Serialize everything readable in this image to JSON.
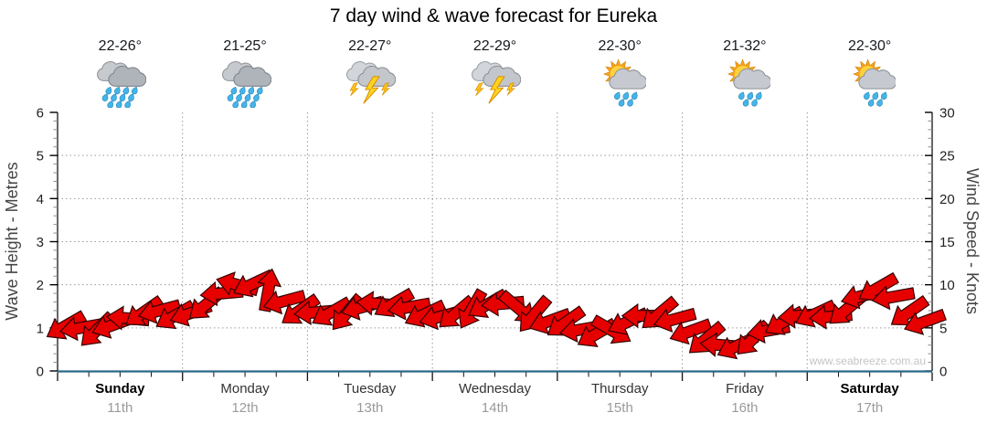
{
  "title": "7 day wind & wave forecast for Eureka",
  "watermark": "www.seabreeze.com.au",
  "axes": {
    "left": {
      "title": "Wave Height - Metres",
      "unit": "metres",
      "ticks": [
        0,
        1,
        2,
        3,
        4,
        5,
        6
      ],
      "max": 6
    },
    "right": {
      "title": "Wind Speed - Knots",
      "unit": "knots",
      "ticks": [
        0,
        5,
        10,
        15,
        20,
        25,
        30
      ],
      "max": 30
    }
  },
  "days": [
    {
      "name": "Sunday",
      "date": "11th",
      "temp": "22-26°",
      "icon": "heavy-rain",
      "weekend": true
    },
    {
      "name": "Monday",
      "date": "12th",
      "temp": "21-25°",
      "icon": "heavy-rain",
      "weekend": false
    },
    {
      "name": "Tuesday",
      "date": "13th",
      "temp": "22-27°",
      "icon": "thunderstorm",
      "weekend": false
    },
    {
      "name": "Wednesday",
      "date": "14th",
      "temp": "22-29°",
      "icon": "thunderstorm",
      "weekend": false
    },
    {
      "name": "Thursday",
      "date": "15th",
      "temp": "22-30°",
      "icon": "sun-shower",
      "weekend": false
    },
    {
      "name": "Friday",
      "date": "16th",
      "temp": "21-32°",
      "icon": "sun-shower",
      "weekend": false
    },
    {
      "name": "Saturday",
      "date": "17th",
      "temp": "22-30°",
      "icon": "sun-shower",
      "weekend": true
    }
  ],
  "chart_data": {
    "type": "wind-barb-series",
    "title": "7 day wind & wave forecast for Eureka",
    "points_per_day": 8,
    "interval_hours": 3,
    "x_categories": [
      "Sunday 11th",
      "Monday 12th",
      "Tuesday 13th",
      "Wednesday 14th",
      "Thursday 15th",
      "Friday 16th",
      "Saturday 17th"
    ],
    "ylim_left_metres": [
      0,
      6
    ],
    "ylim_right_knots": [
      0,
      30
    ],
    "grid": "dotted",
    "legend": "none",
    "wind_speed_knots": [
      5.2,
      5.0,
      4.7,
      5.3,
      6.1,
      6.8,
      7.0,
      6.4,
      6.7,
      7.7,
      9.0,
      10.0,
      10.1,
      9.4,
      8.1,
      7.0,
      6.8,
      6.8,
      6.7,
      7.4,
      7.8,
      7.8,
      7.4,
      6.6,
      6.3,
      6.7,
      7.1,
      7.7,
      7.8,
      7.3,
      6.5,
      5.8,
      5.6,
      4.8,
      4.3,
      4.7,
      5.7,
      6.4,
      6.6,
      6.0,
      4.6,
      3.7,
      3.0,
      2.9,
      3.7,
      4.7,
      5.7,
      6.4,
      6.6,
      6.3,
      7.1,
      8.7,
      9.6,
      8.6,
      6.8,
      5.7
    ],
    "wind_direction_deg": [
      150,
      170,
      135,
      160,
      185,
      145,
      165,
      150,
      160,
      140,
      175,
      195,
      155,
      280,
      165,
      145,
      175,
      150,
      130,
      165,
      185,
      150,
      170,
      155,
      165,
      140,
      120,
      150,
      175,
      40,
      130,
      160,
      145,
      170,
      150,
      30,
      155,
      180,
      140,
      165,
      160,
      140,
      185,
      155,
      135,
      170,
      150,
      175,
      155,
      175,
      140,
      165,
      150,
      170,
      145,
      160
    ],
    "colors": {
      "arrow_fill": "#e60000",
      "arrow_stroke": "#330000",
      "baseline": "#2e6787",
      "grid": "#9a9a9a"
    }
  }
}
